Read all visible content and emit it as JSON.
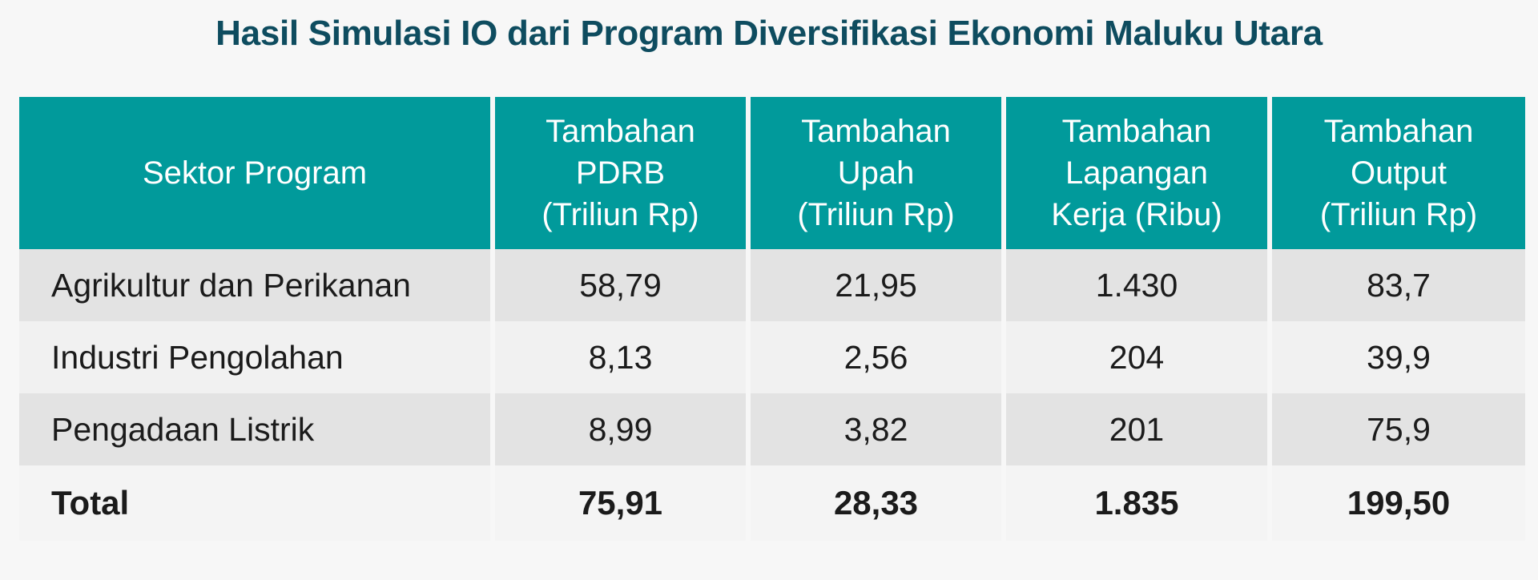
{
  "title": "Hasil Simulasi IO dari Program Diversifikasi Ekonomi Maluku Utara",
  "colors": {
    "title": "#0e4c5f",
    "header_bg": "#019a9b",
    "header_text": "#ffffff",
    "row_shaded": "#e3e3e3",
    "row_light": "#f1f1f1"
  },
  "table": {
    "headers": [
      {
        "lines": [
          "Sektor Program"
        ]
      },
      {
        "lines": [
          "Tambahan",
          "PDRB",
          "(Triliun Rp)"
        ]
      },
      {
        "lines": [
          "Tambahan",
          "Upah",
          "(Triliun Rp)"
        ]
      },
      {
        "lines": [
          "Tambahan",
          "Lapangan",
          "Kerja (Ribu)"
        ]
      },
      {
        "lines": [
          "Tambahan",
          "Output",
          "(Triliun Rp)"
        ]
      }
    ],
    "rows": [
      {
        "sektor": "Agrikultur dan Perikanan",
        "pdrb": "58,79",
        "upah": "21,95",
        "lapangan_kerja": "1.430",
        "output": "83,7"
      },
      {
        "sektor": "Industri Pengolahan",
        "pdrb": "8,13",
        "upah": "2,56",
        "lapangan_kerja": "204",
        "output": "39,9"
      },
      {
        "sektor": "Pengadaan Listrik",
        "pdrb": "8,99",
        "upah": "3,82",
        "lapangan_kerja": "201",
        "output": "75,9"
      }
    ],
    "total": {
      "sektor": "Total",
      "pdrb": "75,91",
      "upah": "28,33",
      "lapangan_kerja": "1.835",
      "output": "199,50"
    }
  }
}
